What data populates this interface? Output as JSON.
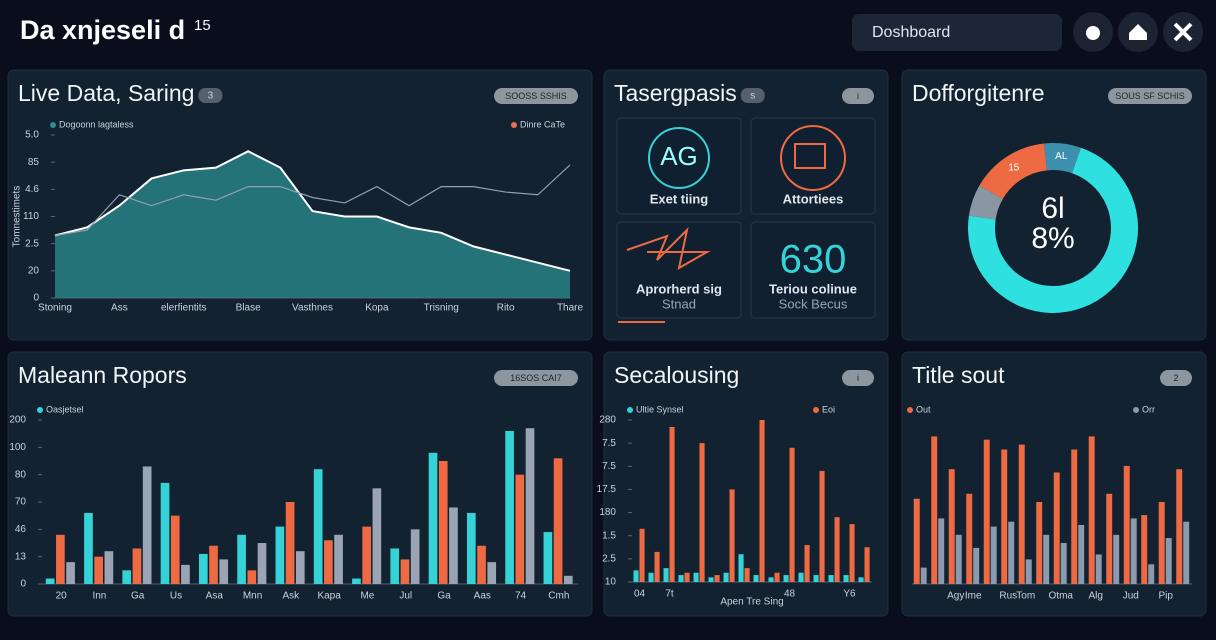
{
  "header": {
    "title": "Da xnjeseli d",
    "sup": "15",
    "search": "Doshboard"
  },
  "panels": [
    {
      "title": "Live Data, Saring",
      "badge": "3",
      "tag": "SOOSS SSHIS"
    },
    {
      "title": "Tasergpasis",
      "badge": "s",
      "tag": "i"
    },
    {
      "title": "Dofforgitenre",
      "tag": "SOUS SF SCHIS"
    },
    {
      "title": "Maleann Ropors",
      "tag": "16SOS CAI7"
    },
    {
      "title": "Secalousing",
      "tag": "i"
    },
    {
      "title": "Title sout",
      "tag": "2"
    }
  ],
  "tiles": [
    {
      "glyph": "AG",
      "label": "Exet tiing"
    },
    {
      "label": "Attortiees"
    },
    {
      "label": "Aprorherd sig",
      "sub": "Stnad"
    },
    {
      "glyph": "630",
      "label": "Teriou colinue",
      "sub": "Sock Becus"
    }
  ],
  "chart_data": [
    {
      "type": "area",
      "ylabel": "Tomnestimets",
      "legend": "top",
      "categories": [
        "Stoning",
        null,
        "Ass",
        null,
        "elerfientits",
        null,
        "Blase",
        null,
        "Vasthnes",
        null,
        "Kopa",
        null,
        "Trisning",
        null,
        "Rito",
        null,
        "Thare"
      ],
      "series": [
        {
          "name": "Dogoonn lagtaless",
          "color": "#2a8f92",
          "style": "area",
          "values": [
            2.3,
            2.6,
            3.4,
            4.4,
            4.7,
            4.8,
            5.4,
            4.8,
            3.2,
            3.0,
            3.0,
            2.6,
            2.4,
            1.9,
            1.6,
            1.3,
            1.0
          ]
        },
        {
          "name": "Dinre CaTe",
          "color": "#e8704f",
          "style": "line",
          "values": [
            2.3,
            2.5,
            3.8,
            3.4,
            3.8,
            3.6,
            4.1,
            4.1,
            3.7,
            3.5,
            4.1,
            3.4,
            4.1,
            4.1,
            3.9,
            3.8,
            4.9
          ]
        }
      ],
      "ylim": [
        0,
        6
      ],
      "yticks": [
        0,
        {
          "value": 1,
          "label": "20"
        },
        {
          "value": 2,
          "label": "2.5"
        },
        {
          "value": 3,
          "label": "110"
        },
        {
          "value": 4,
          "label": "4.6"
        },
        {
          "value": 5,
          "label": "85"
        },
        {
          "value": 6,
          "label": "5.0"
        }
      ]
    },
    {
      "type": "pie",
      "values": [
        15,
        7,
        72,
        6
      ],
      "value_labels": [
        "15",
        "AL",
        null,
        null
      ],
      "colors": [
        "#ee6a43",
        "#3d8fae",
        "#2ee0e0",
        "#8a96a3"
      ],
      "center_label": [
        "6l",
        "8%"
      ]
    },
    {
      "type": "bar",
      "legend": "top",
      "categories": [
        "20",
        "Inn",
        "Ga",
        "Us",
        "Asa",
        "Mnn",
        "Ask",
        "Kapa",
        "Me",
        "Jul",
        "Ga",
        "Aas",
        "74",
        "Cmh"
      ],
      "series": [
        {
          "name": "Oasjetsel",
          "color": "#35d2d8",
          "values": [
            0.2,
            2.6,
            0.5,
            3.7,
            1.1,
            1.8,
            2.1,
            4.2,
            0.2,
            1.3,
            4.8,
            2.6,
            5.6,
            1.9
          ]
        },
        {
          "name": null,
          "color": "#ee6a43",
          "values": [
            1.8,
            1.0,
            1.3,
            2.5,
            1.4,
            0.5,
            3.0,
            1.6,
            2.1,
            0.9,
            4.5,
            1.4,
            4.0,
            4.6
          ]
        },
        {
          "name": null,
          "color": "#9aa4b4",
          "values": [
            0.8,
            1.2,
            4.3,
            0.7,
            0.9,
            1.5,
            1.2,
            1.8,
            3.5,
            2.0,
            2.8,
            0.8,
            5.7,
            0.3
          ]
        }
      ],
      "ylim": [
        0,
        6
      ],
      "yticks": [
        0,
        {
          "value": 1,
          "label": "13"
        },
        {
          "value": 2,
          "label": "46"
        },
        {
          "value": 3,
          "label": "70"
        },
        {
          "value": 4,
          "label": "80"
        },
        {
          "value": 5,
          "label": "100"
        },
        {
          "value": 6,
          "label": "200"
        }
      ]
    },
    {
      "type": "bar",
      "legend": "top",
      "xlabel": "Apen Tre Sing",
      "categories": [
        "04",
        null,
        "7t",
        null,
        null,
        null,
        null,
        null,
        null,
        null,
        "48",
        null,
        null,
        null,
        "Y6",
        null
      ],
      "series": [
        {
          "name": "Ultie Synsel",
          "color": "#35d2d8",
          "values": [
            0.5,
            0.4,
            0.6,
            0.3,
            0.4,
            0.2,
            0.4,
            1.2,
            0.3,
            0.2,
            0.3,
            0.4,
            0.3,
            0.3,
            0.3,
            0.2
          ]
        },
        {
          "name": "Eoi",
          "color": "#ee6a43",
          "values": [
            2.3,
            1.3,
            6.7,
            0.4,
            6.0,
            0.3,
            4.0,
            0.6,
            7.0,
            0.4,
            5.8,
            1.6,
            4.8,
            2.8,
            2.5,
            1.5
          ]
        }
      ],
      "ylim": [
        0,
        7
      ],
      "yticks": [
        {
          "value": 0,
          "label": "10"
        },
        {
          "value": 1,
          "label": "2.5"
        },
        {
          "value": 2,
          "label": "1.5"
        },
        {
          "value": 3,
          "label": "180"
        },
        {
          "value": 4,
          "label": "17.5"
        },
        {
          "value": 5,
          "label": "7.5"
        },
        {
          "value": 6,
          "label": "7.5"
        },
        {
          "value": 7,
          "label": "280"
        }
      ]
    },
    {
      "type": "bar",
      "legend": "top",
      "categories": [
        null,
        null,
        "Agy",
        "Ime",
        null,
        "Rus",
        "Tom",
        null,
        "Otma",
        null,
        "Alg",
        null,
        "Jud",
        null,
        "Pip",
        null
      ],
      "series": [
        {
          "name": "Out",
          "color": "#ee6a43",
          "values": [
            52,
            90,
            70,
            55,
            88,
            82,
            85,
            50,
            68,
            82,
            90,
            55,
            72,
            42,
            50,
            70
          ]
        },
        {
          "name": "Orr",
          "color": "#8a9bb0",
          "values": [
            10,
            40,
            30,
            22,
            35,
            38,
            15,
            30,
            25,
            36,
            18,
            30,
            40,
            12,
            28,
            38
          ]
        }
      ],
      "ylim": [
        0,
        100
      ]
    }
  ]
}
